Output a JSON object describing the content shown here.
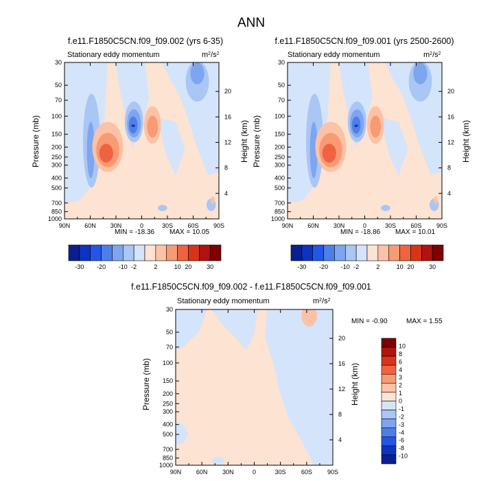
{
  "figure": {
    "title": "ANN"
  },
  "colors": {
    "scale_12": [
      "#0a1f91",
      "#0d33c1",
      "#2456e6",
      "#4e7fe9",
      "#7ea5ef",
      "#a9c6f4",
      "#d4e4fb",
      "#fde3d2",
      "#fcc2a5",
      "#f89a74",
      "#ef6340",
      "#d93419",
      "#b01310",
      "#7f0000"
    ],
    "scale_diff": [
      "#0a1f91",
      "#0d33c1",
      "#2456e6",
      "#4e7fe9",
      "#7ea5ef",
      "#a9c6f4",
      "#d4e4fb",
      "#fde3d2",
      "#fcc2a5",
      "#f89a74",
      "#ef6340",
      "#d93419",
      "#b01310",
      "#7f0000"
    ]
  },
  "panels": [
    {
      "id": "p1",
      "case": "f.e11.F1850C5CN.f09_f09.002 (yrs 6-35)",
      "variable": "Stationary eddy momentum",
      "units_base": "m",
      "units_sup1": "2",
      "units_mid": "/s",
      "units_sup2": "2",
      "min_label": "MIN = -18.36",
      "max_label": "MAX =  10.05",
      "variant": "base"
    },
    {
      "id": "p2",
      "case": "f.e11.F1850C5CN.f09_f09.001 (yrs 2500-2600)",
      "variable": "Stationary eddy momentum",
      "units_base": "m",
      "units_sup1": "2",
      "units_mid": "/s",
      "units_sup2": "2",
      "min_label": "MIN = -18.86",
      "max_label": "MAX = 10.01",
      "variant": "base"
    },
    {
      "id": "p3",
      "case": "f.e11.F1850C5CN.f09_f09.002 - f.e11.F1850C5CN.f09_f09.001",
      "variable": "Stationary eddy momentum",
      "units_base": "m",
      "units_sup1": "2",
      "units_mid": "/s",
      "units_sup2": "2",
      "min_label": "MIN =  -0.90",
      "max_label": "MAX =   1.55",
      "variant": "diff"
    }
  ],
  "chart_data": [
    {
      "type": "heatmap",
      "title": "f.e11.F1850C5CN.f09_f09.002 (yrs 6-35)",
      "subtitle": "Stationary eddy momentum",
      "units": "m2/s2",
      "xlabel": "",
      "ylabel": "Pressure (mb)",
      "ylabel_right": "Height (km)",
      "x_ticks": [
        "90N",
        "60N",
        "30N",
        "0",
        "30S",
        "60S",
        "90S"
      ],
      "y_ticks": [
        "30",
        "50",
        "70",
        "100",
        "150",
        "200",
        "250",
        "300",
        "400",
        "500",
        "700",
        "850",
        "1000"
      ],
      "y_right_ticks": [
        "20",
        "16",
        "12",
        "8",
        "4"
      ],
      "ylim": [
        1000,
        30
      ],
      "min": -18.36,
      "max": 10.05,
      "features": [
        {
          "lat": 68,
          "p": 250,
          "value": -2.5
        },
        {
          "lat": 38,
          "p": 270,
          "value": 5
        },
        {
          "lat": 12,
          "p": 150,
          "value": -10
        },
        {
          "lat": -10,
          "p": 160,
          "value": 3
        },
        {
          "lat": -58,
          "p": 70,
          "value": -4
        }
      ],
      "colorbar": [
        "-30",
        "-20",
        "-10",
        "-2",
        "2",
        "10",
        "20",
        "30"
      ]
    },
    {
      "type": "heatmap",
      "title": "f.e11.F1850C5CN.f09_f09.001 (yrs 2500-2600)",
      "subtitle": "Stationary eddy momentum",
      "units": "m2/s2",
      "xlabel": "",
      "ylabel": "Pressure (mb)",
      "ylabel_right": "Height (km)",
      "x_ticks": [
        "90N",
        "60N",
        "30N",
        "0",
        "30S",
        "60S",
        "90S"
      ],
      "y_ticks": [
        "30",
        "50",
        "70",
        "100",
        "150",
        "200",
        "250",
        "300",
        "400",
        "500",
        "700",
        "850",
        "1000"
      ],
      "y_right_ticks": [
        "20",
        "16",
        "12",
        "8",
        "4"
      ],
      "ylim": [
        1000,
        30
      ],
      "min": -18.86,
      "max": 10.01,
      "features": [
        {
          "lat": 68,
          "p": 250,
          "value": -2.5
        },
        {
          "lat": 38,
          "p": 270,
          "value": 5
        },
        {
          "lat": 12,
          "p": 150,
          "value": -10
        },
        {
          "lat": -10,
          "p": 160,
          "value": 3
        },
        {
          "lat": -58,
          "p": 70,
          "value": -4
        }
      ],
      "colorbar": [
        "-30",
        "-20",
        "-10",
        "-2",
        "2",
        "10",
        "20",
        "30"
      ]
    },
    {
      "type": "heatmap",
      "title": "f.e11.F1850C5CN.f09_f09.002 - f.e11.F1850C5CN.f09_f09.001",
      "subtitle": "Stationary eddy momentum",
      "units": "m2/s2",
      "xlabel": "",
      "ylabel": "Pressure (mb)",
      "ylabel_right": "Height (km)",
      "x_ticks": [
        "90N",
        "60N",
        "30N",
        "0",
        "30S",
        "60S",
        "90S"
      ],
      "y_ticks": [
        "30",
        "50",
        "70",
        "100",
        "150",
        "200",
        "250",
        "300",
        "400",
        "500",
        "700",
        "850",
        "1000"
      ],
      "y_right_ticks": [
        "20",
        "16",
        "12",
        "8",
        "4"
      ],
      "ylim": [
        1000,
        30
      ],
      "min": -0.9,
      "max": 1.55,
      "colorbar": [
        "10",
        "8",
        "6",
        "4",
        "3",
        "2",
        "1",
        "0",
        "-1",
        "-2",
        "-3",
        "-4",
        "-6",
        "-8",
        "-10"
      ]
    }
  ]
}
